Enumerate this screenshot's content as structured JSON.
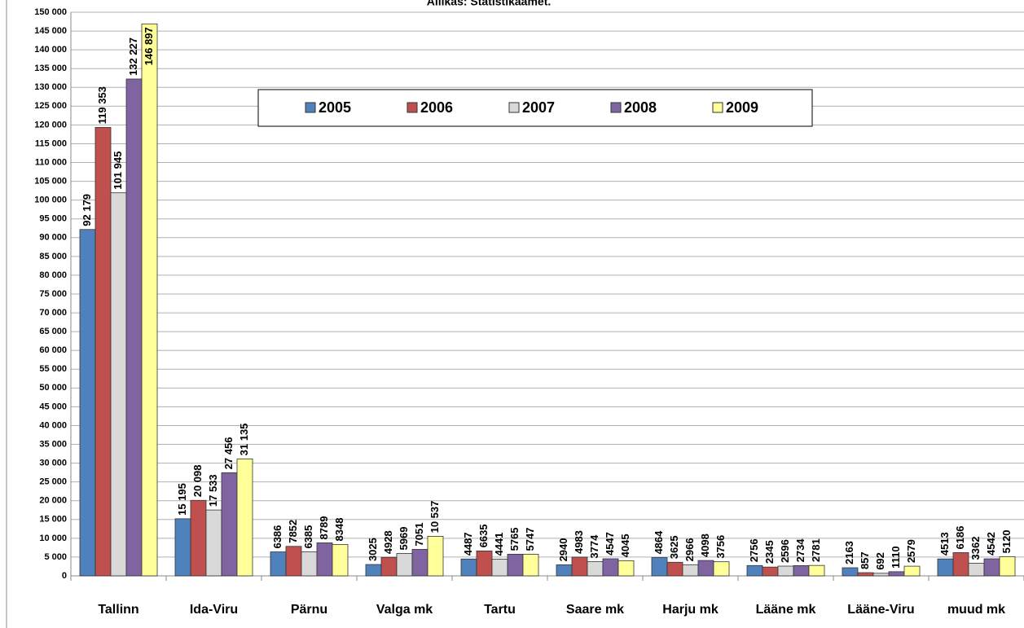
{
  "chart_data": {
    "type": "bar",
    "title": "Allikas: Statistikaamet.",
    "categories": [
      "Tallinn",
      "Ida-Viru",
      "Pärnu",
      "Valga mk",
      "Tartu",
      "Saare mk",
      "Harju mk",
      "Lääne mk",
      "Lääne-Viru",
      "muud mk"
    ],
    "series": [
      {
        "name": "2005",
        "color": "#4f81bd",
        "values": [
          92179,
          15195,
          6386,
          3025,
          4487,
          2940,
          4864,
          2756,
          2163,
          4513
        ],
        "value_labels": [
          "92 179",
          "15 195",
          "6386",
          "3025",
          "4487",
          "2940",
          "4864",
          "2756",
          "2163",
          "4513"
        ]
      },
      {
        "name": "2006",
        "color": "#c0504d",
        "values": [
          119353,
          20098,
          7852,
          4928,
          6635,
          4983,
          3625,
          2345,
          857,
          6186
        ],
        "value_labels": [
          "119 353",
          "20 098",
          "7852",
          "4928",
          "6635",
          "4983",
          "3625",
          "2345",
          "857",
          "6186"
        ]
      },
      {
        "name": "2007",
        "color": "#d9d9d9",
        "values": [
          101945,
          17533,
          6385,
          5969,
          4441,
          3774,
          2966,
          2596,
          692,
          3362
        ],
        "value_labels": [
          "101 945",
          "17 533",
          "6385",
          "5969",
          "4441",
          "3774",
          "2966",
          "2596",
          "692",
          "3362"
        ]
      },
      {
        "name": "2008",
        "color": "#8064a2",
        "values": [
          132227,
          27456,
          8789,
          7051,
          5765,
          4547,
          4098,
          2734,
          1110,
          4542
        ],
        "value_labels": [
          "132 227",
          "27 456",
          "8789",
          "7051",
          "5765",
          "4547",
          "4098",
          "2734",
          "1110",
          "4542"
        ]
      },
      {
        "name": "2009",
        "color": "#ffff99",
        "values": [
          146897,
          31135,
          8348,
          10537,
          5747,
          4045,
          3756,
          2781,
          2579,
          5120
        ],
        "value_labels": [
          "146 897",
          "31 135",
          "8348",
          "10 537",
          "5747",
          "4045",
          "3756",
          "2781",
          "2579",
          "5120"
        ]
      }
    ],
    "ylim": [
      0,
      150000
    ],
    "yticks": [
      0,
      {
        "value": 5000,
        "label": "5 000"
      },
      {
        "value": 10000,
        "label": "10 000"
      },
      {
        "value": 15000,
        "label": "15 000"
      },
      {
        "value": 20000,
        "label": "20 000"
      },
      {
        "value": 25000,
        "label": "25 000"
      },
      {
        "value": 30000,
        "label": "30 000"
      },
      {
        "value": 35000,
        "label": "35 000"
      },
      {
        "value": 40000,
        "label": "40 000"
      },
      {
        "value": 45000,
        "label": "45 000"
      },
      {
        "value": 50000,
        "label": "50 000"
      },
      {
        "value": 55000,
        "label": "55 000"
      },
      {
        "value": 60000,
        "label": "60 000"
      },
      {
        "value": 65000,
        "label": "65 000"
      },
      {
        "value": 70000,
        "label": "70 000"
      },
      {
        "value": 75000,
        "label": "75 000"
      },
      {
        "value": 80000,
        "label": "80 000"
      },
      {
        "value": 85000,
        "label": "85 000"
      },
      {
        "value": 90000,
        "label": "90 000"
      },
      {
        "value": 95000,
        "label": "95 000"
      },
      {
        "value": 100000,
        "label": "100 000"
      },
      {
        "value": 105000,
        "label": "105 000"
      },
      {
        "value": 110000,
        "label": "110 000"
      },
      {
        "value": 115000,
        "label": "115 000"
      },
      {
        "value": 120000,
        "label": "120 000"
      },
      {
        "value": 125000,
        "label": "125 000"
      },
      {
        "value": 130000,
        "label": "130 000"
      },
      {
        "value": 135000,
        "label": "135 000"
      },
      {
        "value": 140000,
        "label": "140 000"
      },
      {
        "value": 145000,
        "label": "145 000"
      },
      {
        "value": 150000,
        "label": "150 000"
      }
    ],
    "grid": true,
    "legend": "top"
  }
}
